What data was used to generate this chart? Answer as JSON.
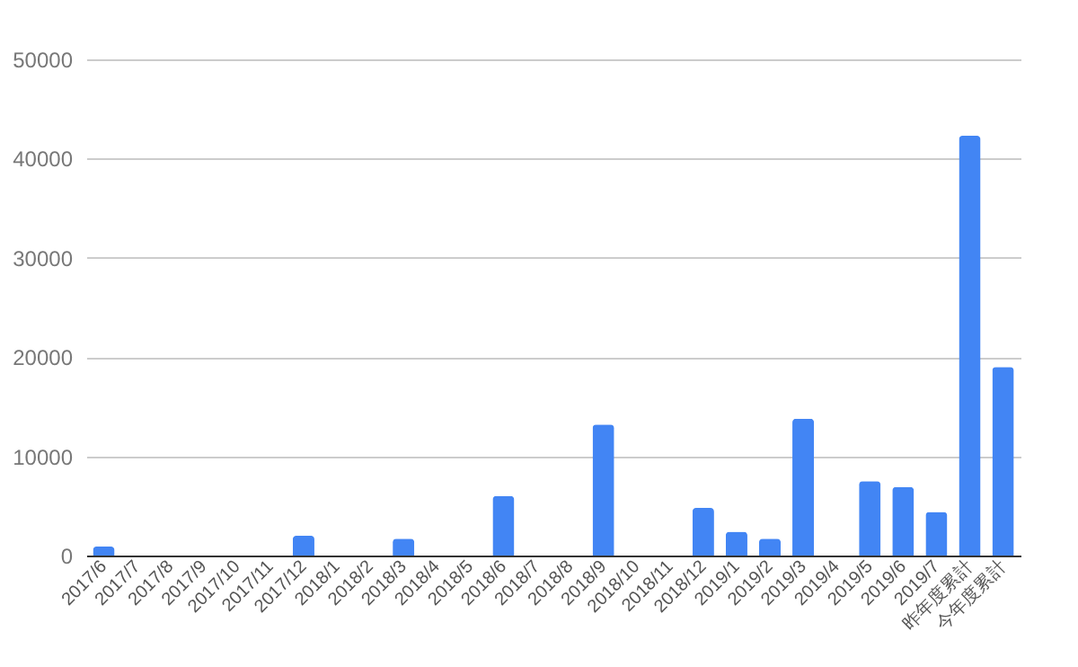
{
  "chart_data": {
    "type": "bar",
    "categories": [
      "2017/6",
      "2017/7",
      "2017/8",
      "2017/9",
      "2017/10",
      "2017/11",
      "2017/12",
      "2018/1",
      "2018/2",
      "2018/3",
      "2018/4",
      "2018/5",
      "2018/6",
      "2018/7",
      "2018/8",
      "2018/9",
      "2018/10",
      "2018/11",
      "2018/12",
      "2019/1",
      "2019/2",
      "2019/3",
      "2019/4",
      "2019/5",
      "2019/6",
      "2019/7",
      "昨年度累計",
      "今年度累計"
    ],
    "values": [
      900,
      0,
      0,
      0,
      0,
      0,
      2000,
      0,
      0,
      1700,
      0,
      0,
      6000,
      0,
      0,
      13200,
      0,
      0,
      4800,
      2400,
      1700,
      13800,
      0,
      7500,
      6900,
      4400,
      42300,
      19000
    ],
    "color": "#4285f4",
    "ylim": [
      0,
      50000
    ],
    "yticks": [
      0,
      10000,
      20000,
      30000,
      40000,
      50000
    ],
    "grid": true
  }
}
